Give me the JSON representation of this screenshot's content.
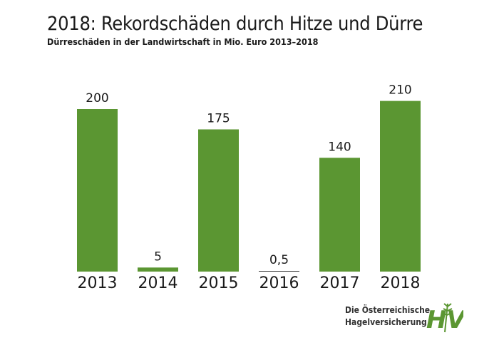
{
  "chart_data": {
    "type": "bar",
    "title": "2018: Rekordschäden durch Hitze und Dürre",
    "subtitle": "Dürreschäden in der Landwirtschaft in Mio. Euro 2013–2018",
    "categories": [
      "2013",
      "2014",
      "2015",
      "2016",
      "2017",
      "2018"
    ],
    "values": [
      200,
      5,
      175,
      0.5,
      140,
      210
    ],
    "value_labels": [
      "200",
      "5",
      "175",
      "0,5",
      "140",
      "210"
    ],
    "xlabel": "",
    "ylabel": "",
    "ylim": [
      0,
      210
    ],
    "grid": false,
    "bar_color": "#5b9632"
  },
  "logo": {
    "line1": "Die Österreichische",
    "line2": "Hagelversicherung",
    "mark": "HV",
    "color": "#5b9632"
  }
}
